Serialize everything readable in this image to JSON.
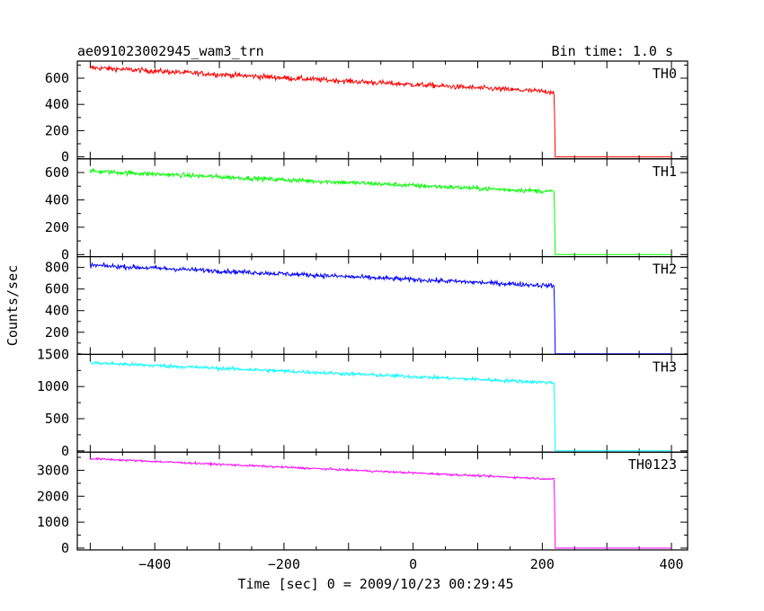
{
  "header": {
    "title": "ae091023002945_wam3_trn",
    "bin_time": "Bin time: 1.0 s"
  },
  "chart_data": {
    "type": "line",
    "xlabel": "Time [sec] 0 = 2009/10/23 00:29:45",
    "ylabel": "Counts/sec",
    "xlim": [
      -520,
      425
    ],
    "x_ticks": [
      -400,
      -200,
      0,
      200,
      400
    ],
    "x_tick_labels": [
      "−400",
      "−200",
      "0",
      "200",
      "400"
    ],
    "drop_time": 218,
    "series": [
      {
        "name": "TH0",
        "color": "#ff0000",
        "ylim": [
          -15,
          730
        ],
        "yticks": [
          0,
          200,
          400,
          600
        ],
        "start_level": 680,
        "end_level": 495,
        "noise": 28,
        "after_drop": 0
      },
      {
        "name": "TH1",
        "color": "#00ff00",
        "ylim": [
          -15,
          700
        ],
        "yticks": [
          0,
          200,
          400,
          600
        ],
        "start_level": 610,
        "end_level": 460,
        "noise": 24,
        "after_drop": 0
      },
      {
        "name": "TH2",
        "color": "#0000ff",
        "ylim": [
          -5,
          900
        ],
        "yticks": [
          200,
          400,
          600,
          800
        ],
        "start_level": 820,
        "end_level": 630,
        "noise": 30,
        "after_drop": 0
      },
      {
        "name": "TH3",
        "color": "#00ffff",
        "ylim": [
          -20,
          1500
        ],
        "yticks": [
          0,
          500,
          1000,
          1500
        ],
        "start_level": 1370,
        "end_level": 1060,
        "noise": 40,
        "after_drop": 0
      },
      {
        "name": "TH0123",
        "color": "#ff00ff",
        "ylim": [
          -70,
          3700
        ],
        "yticks": [
          0,
          1000,
          2000,
          3000
        ],
        "start_level": 3450,
        "end_level": 2660,
        "noise": 55,
        "after_drop": 0
      }
    ]
  }
}
